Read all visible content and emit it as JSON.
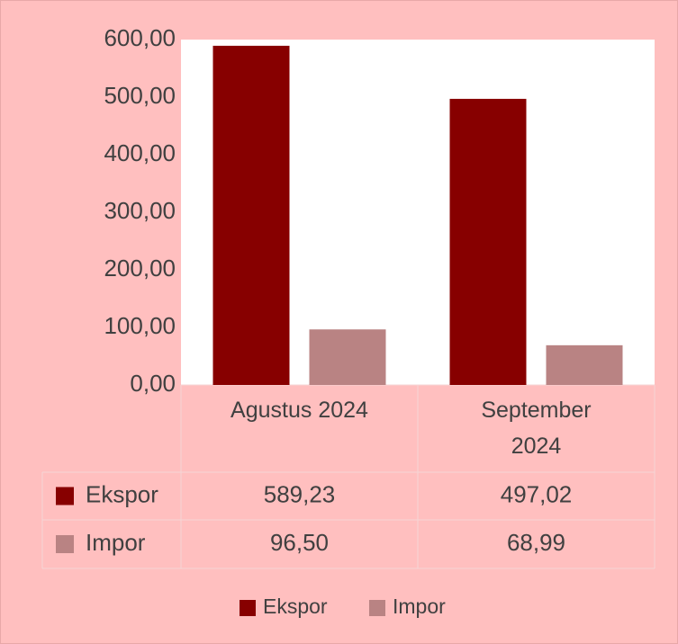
{
  "chart_data": {
    "type": "bar",
    "categories": [
      "Agustus 2024",
      "September 2024"
    ],
    "series": [
      {
        "name": "Ekspor",
        "color": "#870000",
        "values": [
          589.23,
          497.02
        ],
        "value_labels": [
          "589,23",
          "497,02"
        ]
      },
      {
        "name": "Impor",
        "color": "#b98383",
        "values": [
          96.5,
          68.99
        ],
        "value_labels": [
          "96,50",
          "68,99"
        ]
      }
    ],
    "ylim": [
      0,
      600
    ],
    "yticks": [
      {
        "value": 0,
        "label": "0,00"
      },
      {
        "value": 100,
        "label": "100,00"
      },
      {
        "value": 200,
        "label": "200,00"
      },
      {
        "value": 300,
        "label": "300,00"
      },
      {
        "value": 400,
        "label": "400,00"
      },
      {
        "value": 500,
        "label": "500,00"
      },
      {
        "value": 600,
        "label": "600,00"
      }
    ],
    "grid": false,
    "legend": "bottom"
  }
}
